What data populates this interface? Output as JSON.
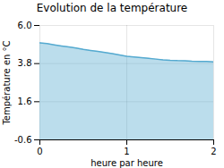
{
  "chart_data": {
    "type": "area",
    "title": "Evolution de la température",
    "x_label": "heure par heure",
    "y_label": "Température en °C",
    "x": [
      0.0,
      0.083,
      0.167,
      0.25,
      0.333,
      0.417,
      0.5,
      0.583,
      0.667,
      0.75,
      0.833,
      0.917,
      1.0,
      1.083,
      1.167,
      1.25,
      1.333,
      1.417,
      1.5,
      1.583,
      1.667,
      1.75,
      1.833,
      1.917,
      2.0
    ],
    "values": [
      5.0,
      4.95,
      4.88,
      4.82,
      4.76,
      4.7,
      4.62,
      4.56,
      4.5,
      4.44,
      4.38,
      4.3,
      4.22,
      4.18,
      4.14,
      4.1,
      4.06,
      4.02,
      3.99,
      3.97,
      3.96,
      3.94,
      3.93,
      3.92,
      3.9
    ],
    "color": "#55aad0",
    "xlim": [
      0,
      2
    ],
    "xticks": [
      0,
      1,
      2
    ],
    "ylim": [
      -0.6,
      6.0
    ],
    "yticks": [
      -0.6,
      1.6,
      3.8,
      {
        "value": 6.0,
        "label": "6.0"
      }
    ],
    "grid": true
  }
}
